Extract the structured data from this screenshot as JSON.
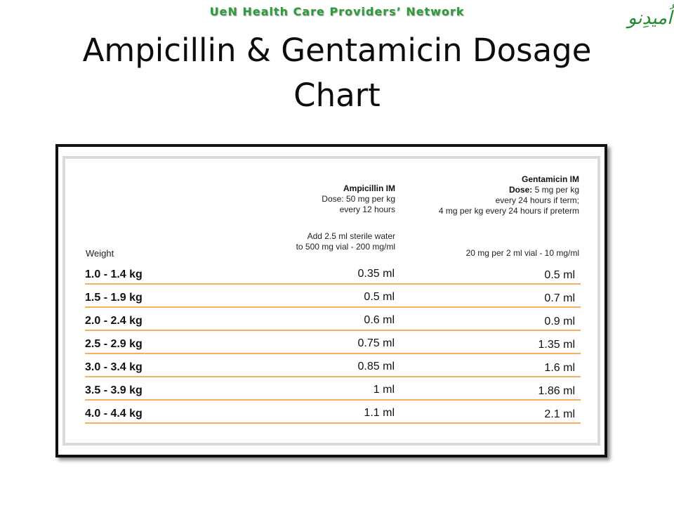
{
  "header": {
    "org": "UeN Health Care Providers’ Network",
    "logo_text": "اُمیدِنو",
    "title_line1": "Ampicillin & Gentamicin Dosage",
    "title_line2": "Chart"
  },
  "table": {
    "ampicillin": {
      "name": "Ampicillin IM",
      "dose": "Dose: 50 mg per kg",
      "frequency": "every  12 hours",
      "prep1": "Add 2.5 ml sterile water",
      "prep2": "to 500 mg vial - 200 mg/ml"
    },
    "gentamicin": {
      "name": "Gentamicin IM",
      "dose_label": "Dose:",
      "dose_value": "5 mg per kg",
      "term": "every 24 hours if term;",
      "preterm": "4 mg per kg every 24 hours if preterm",
      "prep": "20 mg per 2 ml vial - 10 mg/ml"
    },
    "weight_header": "Weight",
    "rows": [
      {
        "weight": "1.0  -  1.4  kg",
        "ampicillin": "0.35  ml",
        "gentamicin": "0.5  ml"
      },
      {
        "weight": "1.5  -  1.9  kg",
        "ampicillin": "0.5  ml",
        "gentamicin": "0.7  ml"
      },
      {
        "weight": "2.0  -  2.4  kg",
        "ampicillin": "0.6  ml",
        "gentamicin": "0.9  ml"
      },
      {
        "weight": "2.5  -  2.9  kg",
        "ampicillin": "0.75  ml",
        "gentamicin": "1.35  ml"
      },
      {
        "weight": "3.0  -  3.4  kg",
        "ampicillin": "0.85  ml",
        "gentamicin": "1.6  ml"
      },
      {
        "weight": "3.5  -  3.9  kg",
        "ampicillin": "1  ml",
        "gentamicin": "1.86  ml"
      },
      {
        "weight": "4.0  -  4.4  kg",
        "ampicillin": "1.1  ml",
        "gentamicin": "2.1  ml"
      }
    ]
  },
  "colors": {
    "org_green": "#2e9c3a",
    "row_rule": "#f4b25a",
    "frame": "#111111"
  }
}
